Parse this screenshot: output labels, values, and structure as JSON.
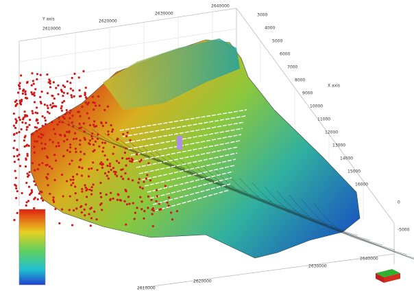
{
  "top_axis": {
    "label": "Y axis",
    "ticks": [
      "2610000",
      "2620000",
      "2630000",
      "2640000"
    ]
  },
  "right_axis": {
    "label": "X axis",
    "ticks": [
      "3000",
      "4000",
      "5000",
      "6000",
      "7000",
      "8000",
      "9000",
      "10000",
      "11000",
      "12000",
      "13000",
      "14000",
      "15000",
      "16000"
    ]
  },
  "z_axis": {
    "ticks": [
      "0",
      "-5000"
    ]
  },
  "bottom_axis": {
    "ticks": [
      "2610000",
      "2620000",
      "2630000",
      "2640000"
    ]
  }
}
